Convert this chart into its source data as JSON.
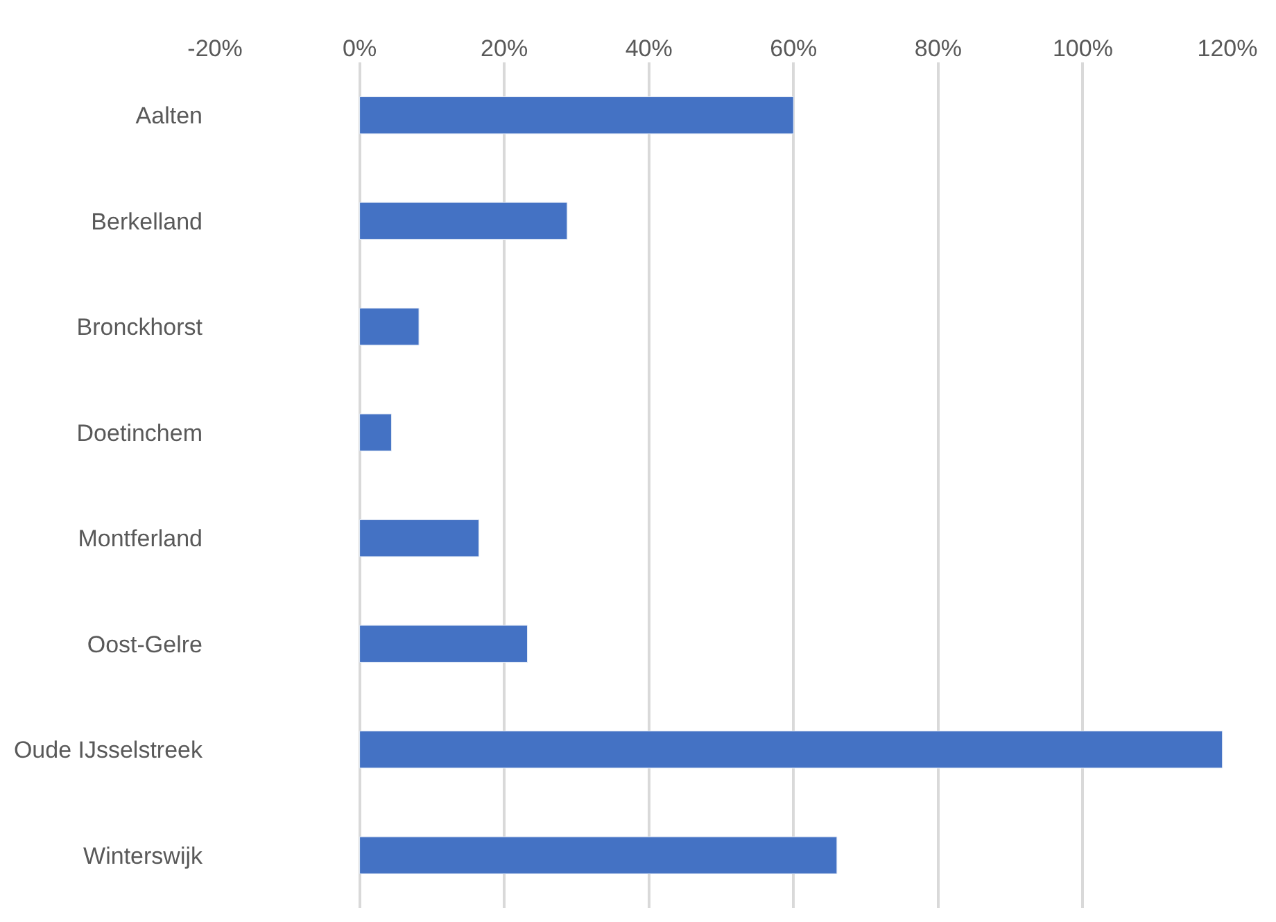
{
  "chart_data": {
    "type": "bar",
    "orientation": "horizontal",
    "categories": [
      "Aalten",
      "Berkelland",
      "Bronckhorst",
      "Doetinchem",
      "Montferland",
      "Oost-Gelre",
      "Oude IJsselstreek",
      "Winterswijk"
    ],
    "values": [
      60,
      28.7,
      8.2,
      4.4,
      16.5,
      23.2,
      119.3,
      66.0
    ],
    "color": "#4472c4",
    "xlim": [
      -20,
      120
    ],
    "xticks": [
      {
        "value": -20,
        "label": "-20%"
      },
      {
        "value": 0,
        "label": "0%"
      },
      {
        "value": 20,
        "label": "20%"
      },
      {
        "value": 40,
        "label": "40%"
      },
      {
        "value": 60,
        "label": "60%"
      },
      {
        "value": 80,
        "label": "80%"
      },
      {
        "value": 100,
        "label": "100%"
      },
      {
        "value": 120,
        "label": "120%"
      }
    ],
    "grid": "x"
  }
}
